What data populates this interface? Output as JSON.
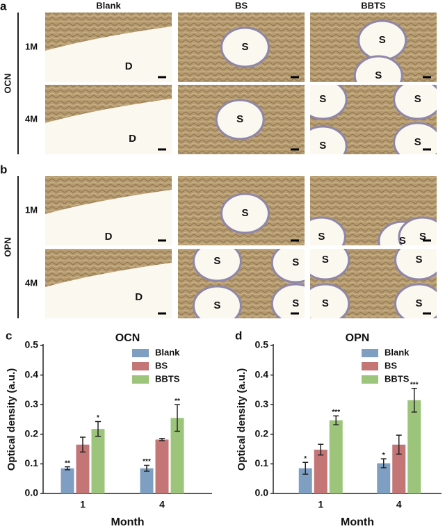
{
  "figure": {
    "columns": [
      "Blank",
      "BS",
      "BBTS"
    ],
    "panels": [
      {
        "label": "a",
        "marker": "OCN",
        "rows": [
          {
            "label": "1M",
            "cells": [
              [
                "D"
              ],
              [
                "S"
              ],
              [
                "S",
                "S"
              ]
            ]
          },
          {
            "label": "4M",
            "cells": [
              [
                "D"
              ],
              [
                "S"
              ],
              [
                "S",
                "S",
                "S",
                "S"
              ]
            ]
          }
        ]
      },
      {
        "label": "b",
        "marker": "OPN",
        "rows": [
          {
            "label": "1M",
            "cells": [
              [
                "D"
              ],
              [
                "S"
              ],
              [
                "S",
                "S",
                "S"
              ]
            ]
          },
          {
            "label": "4M",
            "cells": [
              [
                "D"
              ],
              [
                "S",
                "S",
                "S",
                "S"
              ],
              [
                "S",
                "S",
                "S",
                "S"
              ]
            ]
          }
        ]
      }
    ]
  },
  "chart_data": [
    {
      "type": "bar",
      "panel_label": "c",
      "title": "OCN",
      "x_label": "Month",
      "y_label": "Optical density (a.u.)",
      "categories": [
        "1",
        "4"
      ],
      "ylim": [
        0,
        0.5
      ],
      "yticks": [
        {
          "value": 0,
          "label": "0.0"
        },
        0.1,
        0.2,
        0.3,
        0.4,
        0.5
      ],
      "legend": "upper right",
      "series": [
        {
          "name": "Blank",
          "color": "#7f9fc2",
          "values": [
            0.085,
            0.085
          ],
          "errors": [
            0.005,
            0.01
          ],
          "annotations": [
            "**",
            "***"
          ]
        },
        {
          "name": "BS",
          "color": "#c47575",
          "values": [
            0.165,
            0.182
          ],
          "errors": [
            0.025,
            0.004
          ],
          "annotations": [
            null,
            null
          ]
        },
        {
          "name": "BBTS",
          "color": "#9cc47a",
          "values": [
            0.218,
            0.255
          ],
          "errors": [
            0.025,
            0.045
          ],
          "annotations": [
            "*",
            "**"
          ]
        }
      ]
    },
    {
      "type": "bar",
      "panel_label": "d",
      "title": "OPN",
      "x_label": "Month",
      "y_label": "Optical density (a.u.)",
      "categories": [
        "1",
        "4"
      ],
      "ylim": [
        0,
        0.5
      ],
      "yticks": [
        {
          "value": 0,
          "label": "0.0"
        },
        0.1,
        0.2,
        0.3,
        0.4,
        0.5
      ],
      "legend": "upper right",
      "series": [
        {
          "name": "Blank",
          "color": "#7f9fc2",
          "values": [
            0.085,
            0.102
          ],
          "errors": [
            0.02,
            0.015
          ],
          "annotations": [
            "*",
            "*"
          ]
        },
        {
          "name": "BS",
          "color": "#c47575",
          "values": [
            0.148,
            0.165
          ],
          "errors": [
            0.018,
            0.032
          ],
          "annotations": [
            null,
            null
          ]
        },
        {
          "name": "BBTS",
          "color": "#9cc47a",
          "values": [
            0.247,
            0.315
          ],
          "errors": [
            0.015,
            0.04
          ],
          "annotations": [
            "***",
            "***"
          ]
        }
      ]
    }
  ]
}
